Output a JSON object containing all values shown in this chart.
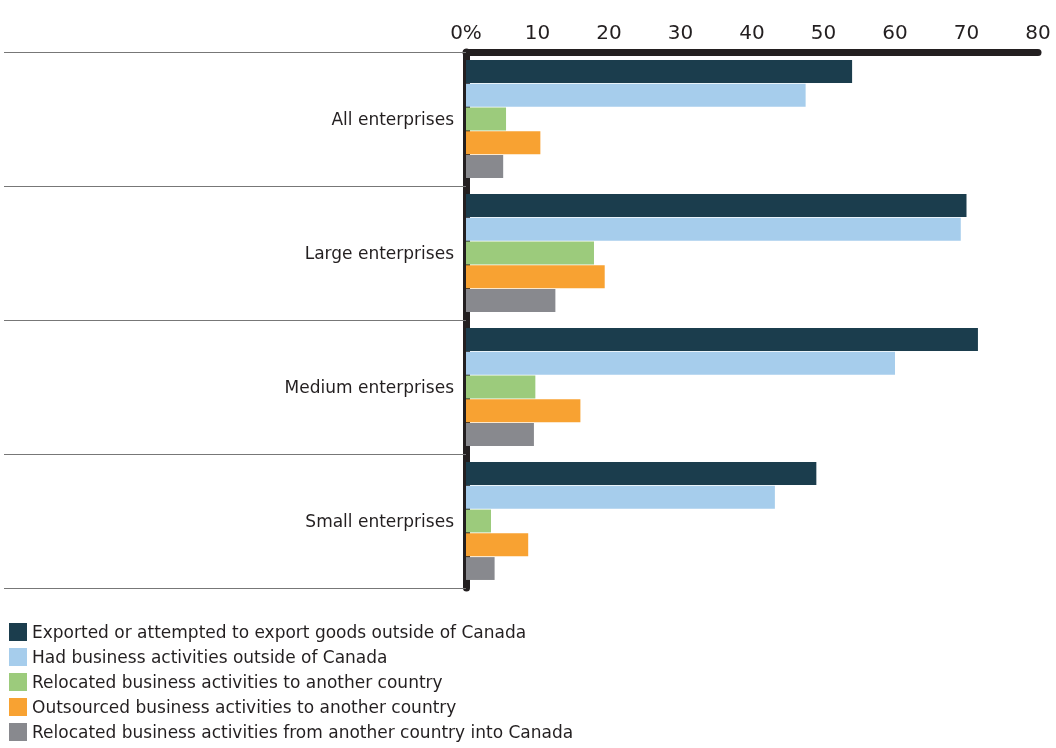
{
  "chart_data": {
    "type": "bar",
    "orientation": "horizontal",
    "categories": [
      "All enterprises",
      "Large enterprises",
      "Medium enterprises",
      "Small enterprises"
    ],
    "series": [
      {
        "name": "Exported or attempted to export goods outside of Canada",
        "color": "#1b3d4d",
        "values": [
          54,
          70,
          71.6,
          49
        ]
      },
      {
        "name": "Had business activities outside of Canada",
        "color": "#a6cdec",
        "values": [
          47.5,
          69.2,
          60,
          43.2
        ]
      },
      {
        "name": "Relocated business activities to another country",
        "color": "#9ccb7c",
        "values": [
          5.6,
          17.9,
          9.7,
          3.5
        ]
      },
      {
        "name": "Outsourced business activities to another country",
        "color": "#f8a232",
        "values": [
          10.4,
          19.4,
          16,
          8.7
        ]
      },
      {
        "name": "Relocated business activities from another country into Canada",
        "color": "#88898e",
        "values": [
          5.2,
          12.5,
          9.5,
          4
        ]
      }
    ],
    "xlim": [
      0,
      80
    ],
    "xticks": [
      {
        "value": 0,
        "label": "0%"
      },
      10,
      20,
      30,
      40,
      50,
      60,
      70,
      80
    ],
    "grid": false,
    "legend": "bottom left"
  }
}
